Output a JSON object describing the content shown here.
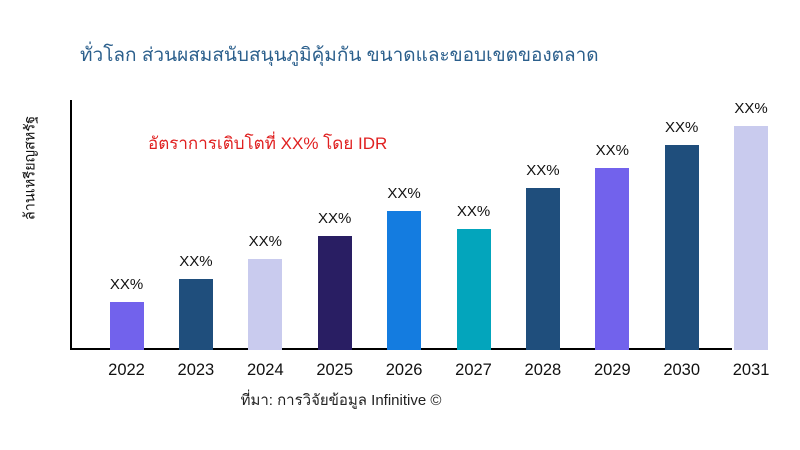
{
  "title": "ทั่วโลก ส่วนผสมสนับสนุนภูมิคุ้มกัน ขนาดและขอบเขตของตลาด",
  "ylabel": "ล้านเหรียญสหรัฐ",
  "annotation": "อัตราการเติบโตที่ XX% โดย IDR",
  "source": "ที่มา: การวิจัยข้อมูล Infinitive ©",
  "colors": {
    "title": "#2B5F8C",
    "annotation": "#E02020",
    "axis": "#000000",
    "label": "#111111"
  },
  "chart_data": {
    "type": "bar",
    "title": "ทั่วโลก ส่วนผสมสนับสนุนภูมิคุ้มกัน ขนาดและขอบเขตของตลาด",
    "xlabel": "",
    "ylabel": "ล้านเหรียญสหรัฐ",
    "categories": [
      "2022",
      "2023",
      "2024",
      "2025",
      "2026",
      "2027",
      "2028",
      "2029",
      "2030",
      "2031"
    ],
    "bar_labels": [
      "XX%",
      "XX%",
      "XX%",
      "XX%",
      "XX%",
      "XX%",
      "XX%",
      "XX%",
      "XX%",
      "XX%"
    ],
    "values_pct_of_max": [
      21,
      31,
      40,
      50,
      61,
      53,
      71,
      80,
      90,
      100
    ],
    "bar_colors": [
      "#7262EC",
      "#1F4E7C",
      "#C9CBEE",
      "#291E63",
      "#147CE0",
      "#03A5BC",
      "#1F4E7C",
      "#7262EC",
      "#1F4E7C",
      "#C9CBEE"
    ],
    "annotation": "อัตราการเติบโตที่ XX% โดย IDR",
    "legend": "none",
    "grid": false,
    "ylim": [
      0,
      100
    ]
  }
}
